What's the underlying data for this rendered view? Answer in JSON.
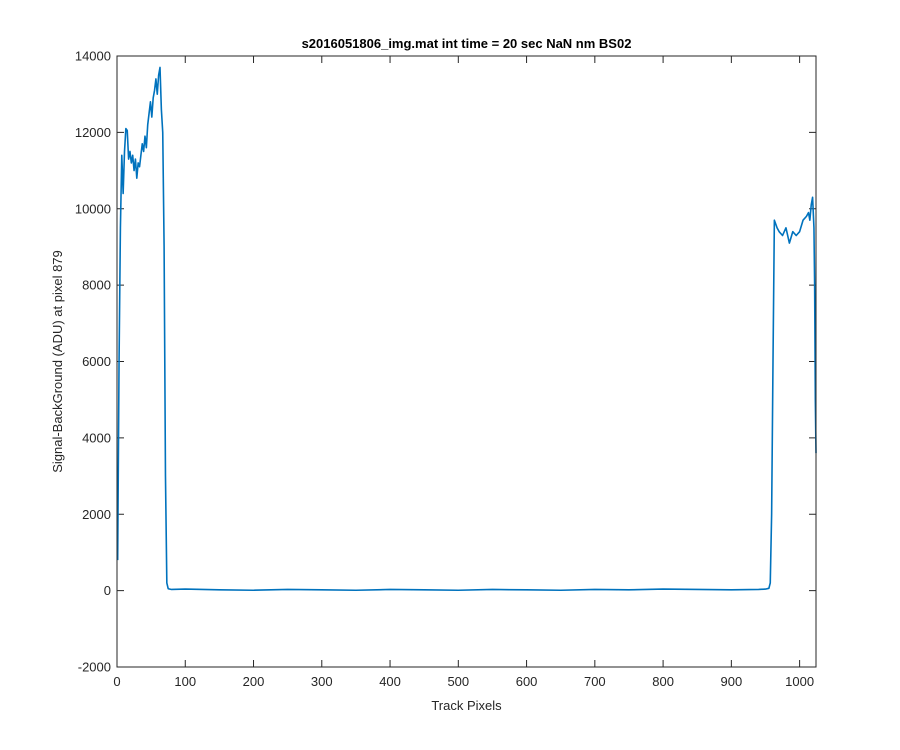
{
  "chart_data": {
    "type": "line",
    "title": "s2016051806_img.mat int time = 20 sec  NaN nm BS02",
    "xlabel": "Track Pixels",
    "ylabel": "Signal-BackGround (ADU) at pixel 879",
    "xlim": [
      0,
      1024
    ],
    "ylim": [
      -2000,
      14000
    ],
    "xticks": [
      0,
      100,
      200,
      300,
      400,
      500,
      600,
      700,
      800,
      900,
      1000
    ],
    "yticks": [
      -2000,
      0,
      2000,
      4000,
      6000,
      8000,
      10000,
      12000,
      14000
    ],
    "grid": false,
    "line_color": "#0072BD",
    "series": [
      {
        "x": [
          1,
          3,
          5,
          7,
          9,
          11,
          13,
          15,
          17,
          19,
          21,
          23,
          25,
          27,
          29,
          31,
          33,
          35,
          37,
          39,
          41,
          43,
          45,
          47,
          49,
          51,
          53,
          55,
          57,
          59,
          61,
          63,
          65,
          67,
          69,
          71,
          73,
          75,
          80,
          100,
          150,
          200,
          250,
          300,
          350,
          400,
          450,
          500,
          550,
          600,
          650,
          700,
          750,
          800,
          850,
          900,
          940,
          950,
          955,
          957,
          959,
          961,
          963,
          965,
          967,
          970,
          975,
          980,
          985,
          990,
          995,
          1000,
          1005,
          1010,
          1013,
          1015,
          1017,
          1019,
          1020,
          1021,
          1022,
          1023,
          1024
        ],
        "y": [
          800,
          6000,
          9500,
          11400,
          10400,
          11500,
          12100,
          12050,
          11300,
          11500,
          11200,
          11400,
          11000,
          11300,
          10800,
          11200,
          11100,
          11400,
          11700,
          11500,
          11900,
          11600,
          12200,
          12500,
          12800,
          12400,
          12900,
          13100,
          13400,
          13000,
          13500,
          13700,
          12600,
          12000,
          9000,
          3000,
          200,
          50,
          30,
          40,
          20,
          10,
          30,
          20,
          10,
          30,
          20,
          10,
          30,
          20,
          10,
          30,
          20,
          40,
          30,
          20,
          30,
          40,
          60,
          200,
          2000,
          6000,
          9700,
          9600,
          9500,
          9400,
          9300,
          9500,
          9100,
          9400,
          9300,
          9400,
          9700,
          9800,
          9900,
          9700,
          10100,
          10300,
          9900,
          9500,
          8000,
          5000,
          3600
        ]
      }
    ]
  }
}
